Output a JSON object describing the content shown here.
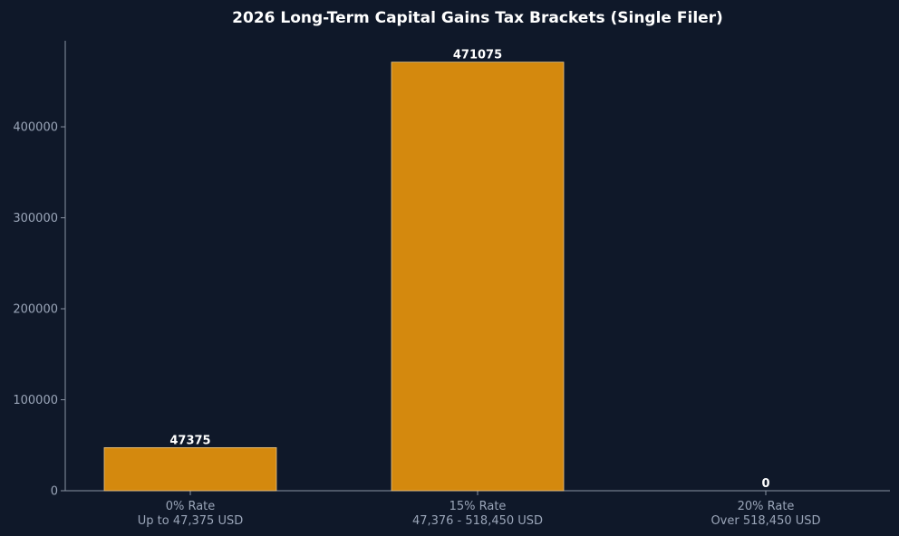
{
  "chart_data": {
    "type": "bar",
    "title": "2026 Long-Term Capital Gains Tax Brackets (Single Filer)",
    "xlabel": "",
    "ylabel": "",
    "categories": [
      [
        "0% Rate",
        "Up to 47,375 USD"
      ],
      [
        "15% Rate",
        "47,376 - 518,450 USD"
      ],
      [
        "20% Rate",
        "Over 518,450 USD"
      ]
    ],
    "values": [
      47375,
      471075,
      0
    ],
    "data_labels": [
      "47375",
      "471075",
      "0"
    ],
    "yticks": [
      0,
      100000,
      200000,
      300000,
      400000
    ],
    "ytick_labels": [
      "0",
      "100000",
      "200000",
      "300000",
      "400000"
    ],
    "ylim": [
      0,
      494600
    ],
    "grid": false,
    "legend": "none",
    "colors": {
      "background": "#0f1829",
      "bar_fill": "#d4890e",
      "bar_edge": "#e6c58a",
      "axis": "#8a93a3",
      "tick_text": "#9aa5b8",
      "title_text": "#ffffff",
      "label_text": "#ffffff"
    }
  }
}
